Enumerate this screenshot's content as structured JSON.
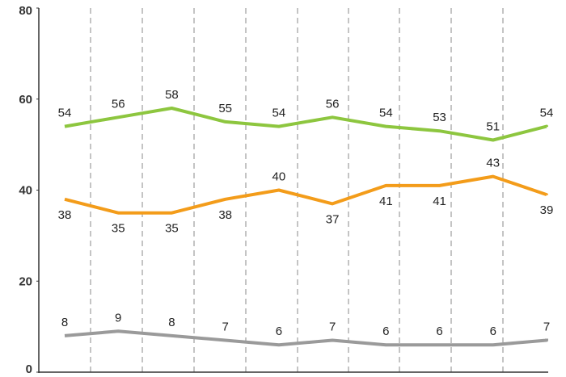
{
  "chart_data": {
    "type": "line",
    "title": "",
    "xlabel": "",
    "ylabel": "",
    "ylim": [
      0,
      80
    ],
    "y_ticks": [
      "0",
      "20",
      "40",
      "60",
      "80"
    ],
    "grid": "vertical dashed dividers",
    "point_count": 10,
    "series": [
      {
        "color": "#8dc63f",
        "values": [
          54,
          56,
          58,
          55,
          54,
          56,
          54,
          53,
          51,
          54
        ],
        "labels": [
          "54",
          "56",
          "58",
          "55",
          "54",
          "56",
          "54",
          "53",
          "51",
          "54"
        ]
      },
      {
        "color": "#f39c1a",
        "values": [
          38,
          35,
          35,
          38,
          40,
          37,
          41,
          41,
          43,
          39
        ],
        "labels": [
          "38",
          "35",
          "35",
          "38",
          "40",
          "37",
          "41",
          "41",
          "43",
          "39"
        ]
      },
      {
        "color": "#9a9a9a",
        "values": [
          8,
          9,
          8,
          7,
          6,
          7,
          6,
          6,
          6,
          7
        ],
        "labels": [
          "8",
          "9",
          "8",
          "7",
          "6",
          "7",
          "6",
          "6",
          "6",
          "7"
        ]
      }
    ]
  }
}
